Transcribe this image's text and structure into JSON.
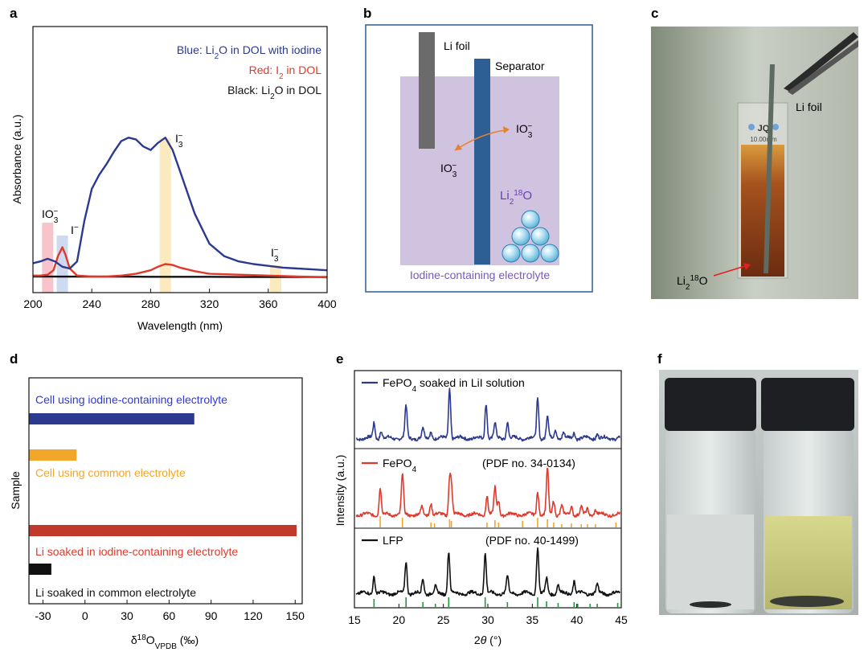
{
  "panel_letters": {
    "a": "a",
    "b": "b",
    "c": "c",
    "d": "d",
    "e": "e",
    "f": "f"
  },
  "colors": {
    "blue": "#2b3a8f",
    "red": "#e0392b",
    "black": "#111111",
    "orange": "#f2a62a",
    "green": "#1f9a3a",
    "purple_bg": "#cfc3e0",
    "separator": "#2d5f94",
    "foil": "#6b6b6b",
    "dark_red": "#c0392b"
  },
  "panel_a": {
    "legend": {
      "blue_prefix": "Blue: Li",
      "blue_sub": "2",
      "blue_suffix": "O in DOL with iodine",
      "red_prefix": "Red: I",
      "red_sub": "2",
      "red_suffix": " in DOL",
      "black_prefix": "Black: Li",
      "black_sub": "2",
      "black_suffix": "O in DOL"
    },
    "annotations": {
      "io3": "IO",
      "io3_sub": "3",
      "io3_sup": "−",
      "i_minus": "I",
      "i_minus_sup": "−",
      "i3": "I",
      "i3_sub": "3",
      "i3_sup": "−"
    }
  },
  "panel_b": {
    "li_foil": "Li foil",
    "separator": "Separator",
    "io3": "IO",
    "io3_sub": "3",
    "io3_sup": "−",
    "li218o_prefix": "Li",
    "li218o_sub": "2",
    "li218o_sup": "18",
    "li218o_suffix": "O",
    "electrolyte_label": "Iodine-containing electrolyte"
  },
  "panel_c": {
    "li_foil": "Li foil",
    "cuvette_brand": "JQ",
    "cuvette_path": "10.00mm",
    "li218o_prefix": "Li",
    "li218o_sub": "2",
    "li218o_sup": "18",
    "li218o_suffix": "O"
  },
  "panel_d": {
    "ylabel": "Sample",
    "bar_labels": [
      "Cell using iodine-containing electrolyte",
      "Cell using common electrolyte",
      "Li soaked in iodine-containing electrolyte",
      "Li soaked in common electrolyte"
    ],
    "xlabel_prefix": "δ",
    "xlabel_sup": "18",
    "xlabel_mid": "O",
    "xlabel_sub": "VPDB",
    "xlabel_suffix": " (‰)"
  },
  "panel_e": {
    "ylabel": "Intensity (a.u.)",
    "xlabel_prefix": "2",
    "xlabel_theta": "θ",
    "xlabel_suffix": " (°)",
    "legend1_prefix": "FePO",
    "legend1_sub": "4",
    "legend1_suffix": " soaked in LiI solution",
    "legend2_prefix": "FePO",
    "legend2_sub": "4",
    "pdf2": "(PDF no. 34-0134)",
    "legend3": "LFP",
    "pdf3": "(PDF no. 40-1499)"
  },
  "chart_data": [
    {
      "id": "a",
      "type": "line",
      "title": "",
      "xlabel": "Wavelength (nm)",
      "ylabel": "Absorbance (a.u.)",
      "xlim": [
        200,
        400
      ],
      "ylim": [
        0,
        1.0
      ],
      "xticks": [
        200,
        240,
        280,
        320,
        360,
        400
      ],
      "highlights": [
        {
          "x": 210,
          "color": "#f7b9c1",
          "label": "IO3-"
        },
        {
          "x": 220,
          "color": "#c5d3ec",
          "label": "I-"
        },
        {
          "x": 290,
          "color": "#fbe6b4",
          "label": "I3-"
        },
        {
          "x": 365,
          "color": "#fbe6b4",
          "label": "I3-"
        }
      ],
      "series": [
        {
          "name": "Blue: Li2O in DOL with iodine",
          "color": "#2b3a8f",
          "x": [
            200,
            205,
            210,
            215,
            220,
            225,
            230,
            235,
            240,
            245,
            250,
            255,
            260,
            265,
            270,
            275,
            280,
            285,
            290,
            295,
            300,
            310,
            320,
            330,
            340,
            350,
            360,
            370,
            380,
            390,
            400
          ],
          "y": [
            0.08,
            0.09,
            0.105,
            0.09,
            0.06,
            0.05,
            0.09,
            0.32,
            0.5,
            0.58,
            0.64,
            0.71,
            0.77,
            0.79,
            0.78,
            0.74,
            0.72,
            0.76,
            0.79,
            0.72,
            0.6,
            0.36,
            0.19,
            0.12,
            0.09,
            0.075,
            0.065,
            0.055,
            0.05,
            0.045,
            0.04
          ]
        },
        {
          "name": "Red: I2 in DOL",
          "color": "#e0392b",
          "x": [
            200,
            205,
            210,
            214,
            217,
            220,
            222,
            225,
            230,
            240,
            250,
            260,
            270,
            280,
            285,
            290,
            295,
            300,
            310,
            320,
            340,
            360,
            380,
            400
          ],
          "y": [
            0.01,
            0.01,
            0.015,
            0.04,
            0.12,
            0.17,
            0.13,
            0.05,
            0.01,
            0.005,
            0.005,
            0.01,
            0.02,
            0.04,
            0.06,
            0.075,
            0.07,
            0.055,
            0.035,
            0.02,
            0.015,
            0.01,
            0.005,
            0.0
          ]
        },
        {
          "name": "Black: Li2O in DOL",
          "color": "#111111",
          "x": [
            200,
            220,
            240,
            260,
            280,
            300,
            320,
            340,
            360,
            380,
            400
          ],
          "y": [
            0.005,
            0.004,
            0.004,
            0.004,
            0.003,
            0.003,
            0.003,
            0.002,
            0.002,
            0.002,
            0.002
          ]
        }
      ]
    },
    {
      "id": "d",
      "type": "bar",
      "orientation": "horizontal",
      "ylabel": "Sample",
      "xlabel": "δ18O VPDB (‰)",
      "xlim": [
        -40,
        155
      ],
      "xticks": [
        -30,
        0,
        30,
        60,
        90,
        120,
        150
      ],
      "categories": [
        "Cell using iodine-containing electrolyte",
        "Cell using common electrolyte",
        "Li soaked in iodine-containing electrolyte",
        "Li soaked in common electrolyte"
      ],
      "values": [
        78,
        -6,
        151,
        -24
      ],
      "bar_colors": [
        "#2b3a8f",
        "#f2a62a",
        "#c0392b",
        "#111111"
      ],
      "label_colors": [
        "#2b3ad8",
        "#f2a62a",
        "#e0392b",
        "#111111"
      ]
    },
    {
      "id": "e",
      "type": "line",
      "xlabel": "2θ (°)",
      "ylabel": "Intensity (a.u.)",
      "xlim": [
        15,
        45
      ],
      "xticks": [
        15,
        20,
        25,
        30,
        35,
        40,
        45
      ],
      "series": [
        {
          "name": "FePO4 soaked in LiI solution",
          "color": "#2b3a8f",
          "peaks": [
            [
              17.2,
              0.3
            ],
            [
              18.0,
              0.15
            ],
            [
              20.8,
              0.65
            ],
            [
              22.7,
              0.2
            ],
            [
              23.6,
              0.14
            ],
            [
              25.7,
              1.0
            ],
            [
              29.8,
              0.72
            ],
            [
              30.8,
              0.3
            ],
            [
              32.2,
              0.33
            ],
            [
              35.6,
              0.8
            ],
            [
              36.7,
              0.45
            ],
            [
              37.6,
              0.18
            ],
            [
              38.5,
              0.12
            ],
            [
              39.7,
              0.12
            ],
            [
              42.3,
              0.1
            ]
          ]
        },
        {
          "name": "FePO4",
          "color": "#e0392b",
          "peaks": [
            [
              17.9,
              0.55
            ],
            [
              20.4,
              0.85
            ],
            [
              22.6,
              0.15
            ],
            [
              23.6,
              0.25
            ],
            [
              25.7,
              0.7
            ],
            [
              25.9,
              0.55
            ],
            [
              29.9,
              0.4
            ],
            [
              30.8,
              0.55
            ],
            [
              31.2,
              0.3
            ],
            [
              35.6,
              0.48
            ],
            [
              36.7,
              0.95
            ],
            [
              37.4,
              0.3
            ],
            [
              38.3,
              0.18
            ],
            [
              39.4,
              0.18
            ],
            [
              40.5,
              0.15
            ],
            [
              41.2,
              0.12
            ],
            [
              42.1,
              0.1
            ]
          ]
        },
        {
          "name": "LFP",
          "color": "#111111",
          "peaks": [
            [
              17.2,
              0.35
            ],
            [
              20.8,
              0.65
            ],
            [
              22.7,
              0.3
            ],
            [
              24.1,
              0.12
            ],
            [
              25.6,
              0.85
            ],
            [
              29.7,
              0.8
            ],
            [
              32.2,
              0.35
            ],
            [
              35.6,
              0.95
            ],
            [
              36.6,
              0.3
            ],
            [
              37.9,
              0.18
            ],
            [
              39.7,
              0.25
            ],
            [
              42.3,
              0.17
            ]
          ]
        }
      ],
      "reference_ticks": [
        {
          "name": "PDF no. 34-0134",
          "color": "#f2a62a",
          "x": [
            17.9,
            20.4,
            23.6,
            24.0,
            25.7,
            25.9,
            29.9,
            30.8,
            31.2,
            33.9,
            35.6,
            36.7,
            37.4,
            38.3,
            39.4,
            40.5,
            41.2,
            42.1,
            44.4
          ]
        },
        {
          "name": "PDF no. 40-1499",
          "color": "#1f9a3a",
          "x": [
            17.2,
            20.8,
            22.7,
            24.1,
            25.6,
            29.7,
            32.2,
            35.6,
            36.6,
            37.9,
            39.7,
            40.1,
            41.5,
            42.3,
            44.6
          ]
        }
      ]
    }
  ]
}
